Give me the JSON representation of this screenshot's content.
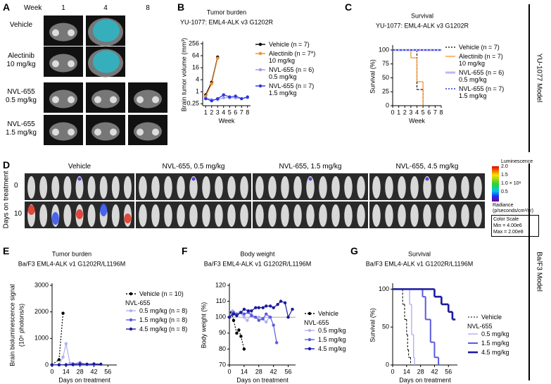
{
  "panel_a": {
    "label": "A",
    "week_header": "Week",
    "weeks": [
      "1",
      "4",
      "8"
    ],
    "rows": [
      "Vehicle",
      "Alectinib\n10 mg/kg",
      "NVL-655\n0.5 mg/kg",
      "NVL-655\n1.5 mg/kg"
    ]
  },
  "panel_d": {
    "label": "D",
    "groups": [
      "Vehicle",
      "NVL-655, 0.5 mg/kg",
      "NVL-655, 1.5 mg/kg",
      "NVL-655, 4.5 mg/kg"
    ],
    "y_title": "Days on treatment",
    "rows": [
      "0",
      "10"
    ],
    "colorbar": {
      "title": "Luminescence",
      "ticks": [
        "2.0",
        "1.5",
        "1.0 × 10⁸",
        "0.5"
      ],
      "unit": "Radiance\n(p/seconds/cm²/sr)"
    },
    "color_scale": {
      "title": "Color Scale",
      "min": "Min = 4.00e6",
      "max": "Max = 2.00e8"
    }
  },
  "model_labels": [
    "YU-1077 Model",
    "Ba/F3 Model"
  ],
  "chart_data": [
    {
      "type": "line",
      "panel": "B",
      "title": "Tumor burden",
      "subtitle": "YU-1077: EML4-ALK v3 G1202R",
      "xlabel": "Week",
      "ylabel": "Brain tumor volume (mm³)",
      "log_y": true,
      "markers": true,
      "xlim": [
        0.5,
        8.5
      ],
      "xticks": [
        1,
        2,
        3,
        4,
        5,
        6,
        7,
        8
      ],
      "ylim": [
        0.2,
        256
      ],
      "yticks": [
        0.25,
        1,
        4,
        16,
        64,
        256
      ],
      "series": [
        {
          "name": "Vehicle (n = 7)",
          "color": "#000000",
          "x": [
            1,
            2,
            3
          ],
          "values": [
            0.7,
            3,
            55
          ]
        },
        {
          "name": "Alectinib (n = 7*)\n10 mg/kg",
          "color": "#f28c28",
          "x": [
            1,
            2,
            3
          ],
          "values": [
            0.6,
            2.5,
            48
          ]
        },
        {
          "name": "NVL-655 (n = 6)\n0.5 mg/kg",
          "color": "#9a9af0",
          "x": [
            1,
            2,
            3,
            4,
            5,
            6,
            7,
            8
          ],
          "values": [
            0.5,
            0.4,
            0.4,
            0.5,
            0.5,
            0.5,
            0.45,
            0.5
          ]
        },
        {
          "name": "NVL-655 (n = 7)\n1.5 mg/kg",
          "color": "#2a35d8",
          "x": [
            1,
            2,
            3,
            4,
            5,
            6,
            7,
            8
          ],
          "values": [
            0.45,
            0.35,
            0.45,
            0.7,
            0.55,
            0.6,
            0.45,
            0.55
          ]
        }
      ]
    },
    {
      "type": "step",
      "panel": "C",
      "title": "Survival",
      "subtitle": "YU-1077: EML4-ALK v3 G1202R",
      "xlabel": "Week",
      "ylabel": "Survival (%)",
      "xlim": [
        0,
        8
      ],
      "xticks": [
        0,
        1,
        2,
        3,
        4,
        5,
        6,
        7,
        8
      ],
      "ylim": [
        0,
        105
      ],
      "yticks": [
        0,
        25,
        50,
        75,
        100
      ],
      "series": [
        {
          "name": "Vehicle (n = 7)",
          "color": "#000000",
          "dash": true,
          "line_width": 1.2,
          "x": [
            0,
            4,
            5
          ],
          "values": [
            100,
            29,
            0
          ]
        },
        {
          "name": "Alectinib (n = 7)\n10 mg/kg",
          "color": "#f28c28",
          "line_width": 1.2,
          "x": [
            0,
            3,
            4,
            5
          ],
          "values": [
            100,
            86,
            43,
            0
          ]
        },
        {
          "name": "NVL-655 (n = 6)\n0.5 mg/kg",
          "color": "#b8b8f4",
          "line_width": 3,
          "x": [
            0,
            8
          ],
          "values": [
            100,
            100
          ]
        },
        {
          "name": "NVL-655 (n = 7)\n1.5 mg/kg",
          "color": "#2a35d8",
          "dash": true,
          "line_width": 1.6,
          "x": [
            0,
            8
          ],
          "values": [
            100,
            100
          ]
        }
      ]
    },
    {
      "type": "line",
      "panel": "E",
      "title": "Tumor burden",
      "subtitle": "Ba/F3 EML4-ALK v1 G1202R/L1196M",
      "xlabel": "Days on treatment",
      "ylabel": [
        "Brain bioluminescence signal",
        "(10⁶ photons/s)"
      ],
      "markers": true,
      "legend_group": "NVL-655",
      "xlim": [
        0,
        65
      ],
      "xticks": [
        0,
        14,
        28,
        42,
        56
      ],
      "ylim": [
        0,
        3000
      ],
      "yticks": [
        0,
        1000,
        2000,
        3000
      ],
      "series": [
        {
          "name": "Vehicle (n = 10)",
          "color": "#000000",
          "dash": true,
          "x": [
            0,
            7,
            11
          ],
          "values": [
            10,
            200,
            1950
          ]
        },
        {
          "name": "0.5 mg/kg (n = 8)",
          "color": "#b0b0f2",
          "x": [
            0,
            7,
            11,
            14,
            18,
            21,
            28,
            35
          ],
          "values": [
            5,
            10,
            300,
            800,
            60,
            30,
            20,
            15
          ]
        },
        {
          "name": "1.5 mg/kg (n = 8)",
          "color": "#5a5ae0",
          "x": [
            0,
            7,
            14,
            21,
            28,
            35,
            42
          ],
          "values": [
            5,
            5,
            10,
            40,
            80,
            20,
            10
          ]
        },
        {
          "name": "4.5 mg/kg (n = 8)",
          "color": "#1a1aa0",
          "x": [
            0,
            7,
            14,
            21,
            28,
            35,
            42,
            49
          ],
          "values": [
            5,
            5,
            5,
            10,
            20,
            30,
            40,
            30
          ]
        }
      ]
    },
    {
      "type": "line",
      "panel": "F",
      "title": "Body weight",
      "subtitle": "Ba/F3 EML4-ALK v1 G1202R/L1196M",
      "xlabel": "Days on treatment",
      "ylabel": "Body weight (%)",
      "markers": true,
      "reference_line": 100,
      "legend_group": "NVL-655",
      "xlim": [
        0,
        63
      ],
      "xticks": [
        0,
        14,
        28,
        42,
        56
      ],
      "ylim": [
        70,
        120
      ],
      "yticks": [
        70,
        80,
        90,
        100,
        110,
        120
      ],
      "series": [
        {
          "name": "Vehicle",
          "color": "#000000",
          "dash": true,
          "x": [
            0,
            2,
            4,
            7,
            9,
            11,
            14
          ],
          "values": [
            100,
            103,
            98,
            90,
            92,
            88,
            80
          ]
        },
        {
          "name": "0.5 mg/kg",
          "color": "#b0b0f2",
          "x": [
            0,
            3,
            7,
            10,
            14,
            17,
            21,
            24,
            28,
            31,
            35,
            38
          ],
          "values": [
            100,
            104,
            101,
            103,
            100,
            98,
            102,
            100,
            100,
            99,
            97,
            100
          ]
        },
        {
          "name": "1.5 mg/kg",
          "color": "#5a5ae0",
          "x": [
            0,
            4,
            7,
            11,
            14,
            18,
            21,
            25,
            28,
            32,
            35,
            39,
            42,
            45
          ],
          "values": [
            100,
            103,
            102,
            103,
            102,
            103,
            101,
            100,
            98,
            99,
            102,
            100,
            95,
            84
          ]
        },
        {
          "name": "4.5 mg/kg",
          "color": "#1a1aa0",
          "x": [
            0,
            4,
            7,
            11,
            14,
            18,
            21,
            25,
            28,
            32,
            35,
            39,
            42,
            46,
            49,
            53,
            56,
            60
          ],
          "values": [
            100,
            102,
            101,
            103,
            105,
            104,
            104,
            106,
            106,
            106,
            107,
            107,
            106,
            108,
            110,
            109,
            100,
            105
          ]
        }
      ]
    },
    {
      "type": "step",
      "panel": "G",
      "title": "Survival",
      "subtitle": "Ba/F3 EML4-ALK v1 G1202R/L1196M",
      "xlabel": "Days on treatment",
      "ylabel": "Survival (%)",
      "legend_group": "NVL-655",
      "xlim": [
        0,
        65
      ],
      "xticks": [
        0,
        14,
        28,
        42,
        56
      ],
      "ylim": [
        0,
        105
      ],
      "yticks": [
        0,
        50,
        100
      ],
      "series": [
        {
          "name": "Vehicle",
          "color": "#000000",
          "dash": true,
          "line_width": 1,
          "x": [
            0,
            10,
            12,
            14,
            15,
            16,
            18
          ],
          "values": [
            100,
            80,
            60,
            40,
            20,
            10,
            0
          ]
        },
        {
          "name": "0.5 mg/kg",
          "color": "#b0b0f2",
          "line_width": 1.4,
          "x": [
            0,
            17,
            19,
            21,
            22
          ],
          "values": [
            100,
            80,
            40,
            10,
            0
          ]
        },
        {
          "name": "1.5 mg/kg",
          "color": "#5a5ae0",
          "line_width": 2,
          "x": [
            0,
            30,
            33,
            38,
            42,
            46
          ],
          "values": [
            100,
            90,
            60,
            30,
            10,
            0
          ]
        },
        {
          "name": "4.5 mg/kg",
          "color": "#1a1aa0",
          "line_width": 2.6,
          "x": [
            0,
            42,
            49,
            56,
            60,
            63
          ],
          "values": [
            100,
            90,
            80,
            70,
            60,
            60
          ]
        }
      ]
    }
  ]
}
